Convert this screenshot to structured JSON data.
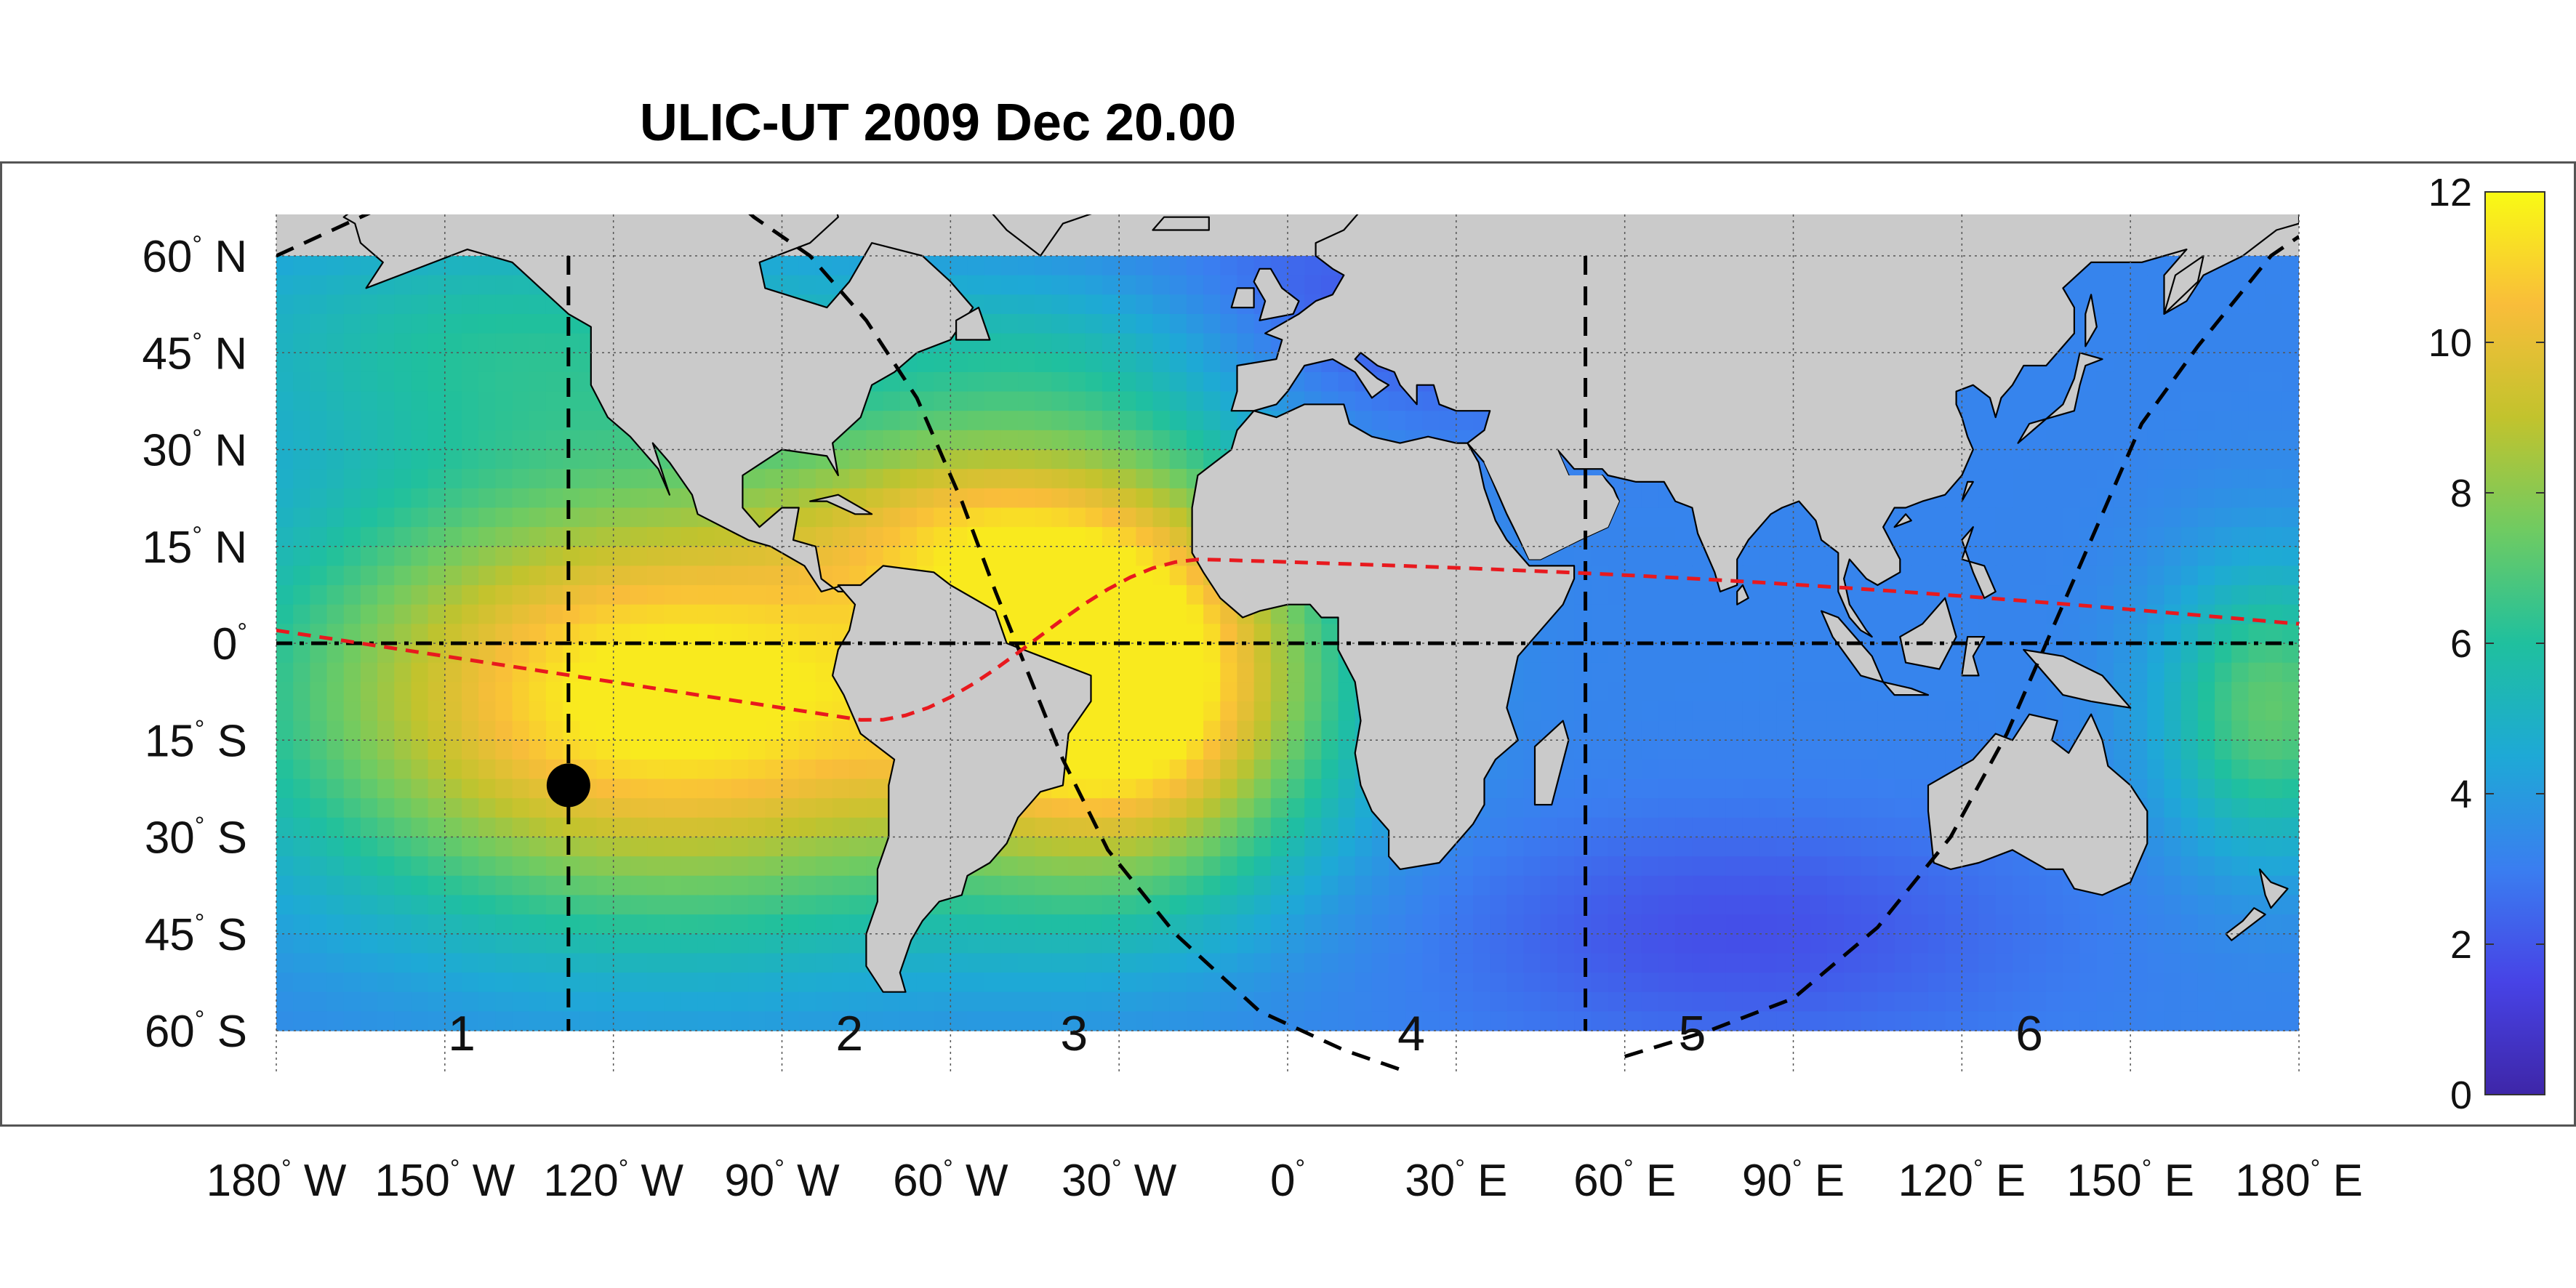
{
  "title": "ULIC-UT 2009 Dec 20.00",
  "lon_labels": [
    {
      "deg": "180",
      "hemi": "W",
      "lon": -180
    },
    {
      "deg": "150",
      "hemi": "W",
      "lon": -150
    },
    {
      "deg": "120",
      "hemi": "W",
      "lon": -120
    },
    {
      "deg": "90",
      "hemi": "W",
      "lon": -90
    },
    {
      "deg": "60",
      "hemi": "W",
      "lon": -60
    },
    {
      "deg": "30",
      "hemi": "W",
      "lon": -30
    },
    {
      "deg": "0",
      "hemi": "",
      "lon": 0
    },
    {
      "deg": "30",
      "hemi": "E",
      "lon": 30
    },
    {
      "deg": "60",
      "hemi": "E",
      "lon": 60
    },
    {
      "deg": "90",
      "hemi": "E",
      "lon": 90
    },
    {
      "deg": "120",
      "hemi": "E",
      "lon": 120
    },
    {
      "deg": "150",
      "hemi": "E",
      "lon": 150
    },
    {
      "deg": "180",
      "hemi": "E",
      "lon": 180
    }
  ],
  "lat_labels": [
    {
      "deg": "60",
      "hemi": "N",
      "lat": 60
    },
    {
      "deg": "45",
      "hemi": "N",
      "lat": 45
    },
    {
      "deg": "30",
      "hemi": "N",
      "lat": 30
    },
    {
      "deg": "15",
      "hemi": "N",
      "lat": 15
    },
    {
      "deg": "0",
      "hemi": "",
      "lat": 0
    },
    {
      "deg": "15",
      "hemi": "S",
      "lat": -15
    },
    {
      "deg": "30",
      "hemi": "S",
      "lat": -30
    },
    {
      "deg": "45",
      "hemi": "S",
      "lat": -45
    },
    {
      "deg": "60",
      "hemi": "S",
      "lat": -60
    }
  ],
  "zones": [
    {
      "label": "1",
      "lon": -147
    },
    {
      "label": "2",
      "lon": -78
    },
    {
      "label": "3",
      "lon": -38
    },
    {
      "label": "4",
      "lon": 22
    },
    {
      "label": "5",
      "lon": 72
    },
    {
      "label": "6",
      "lon": 132
    }
  ],
  "colorbar": {
    "min": 0,
    "max": 12,
    "ticks": [
      "0",
      "2",
      "4",
      "6",
      "8",
      "10",
      "12"
    ],
    "colors": [
      "#3e26a8",
      "#4743e6",
      "#3a7ef0",
      "#1ea9d6",
      "#1fc09e",
      "#6fcb62",
      "#c2c32d",
      "#f9bd3a",
      "#f9fa14"
    ]
  },
  "marker": {
    "lon": -128,
    "lat": -22,
    "color": "#000000"
  },
  "meridian_lines": [
    -128,
    53
  ],
  "terminator_color": "#000000",
  "subsolar_track_color": "#e8191e",
  "land_color": "#cacaca",
  "coast_color": "#000000"
}
